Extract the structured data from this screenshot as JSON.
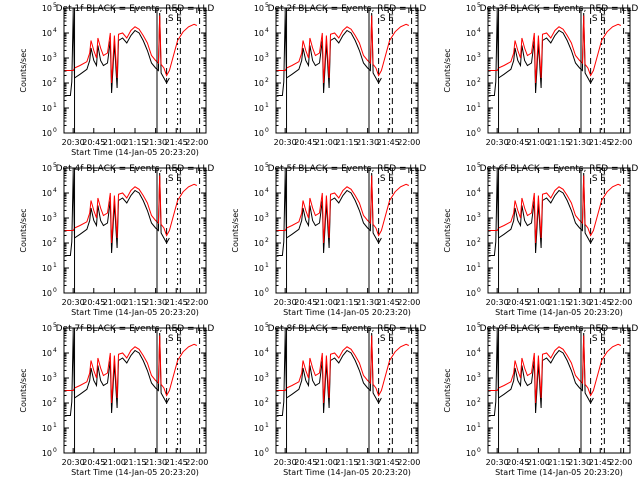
{
  "figure": {
    "background": "#ffffff",
    "colors": {
      "events": "#000000",
      "lld": "#ff0000"
    }
  },
  "chart_data": [
    {
      "type": "line",
      "title": "Det 1f BLACK = Events, RED = LLD",
      "xlabel": "Start Time (14-Jan-05 20:23:20)",
      "ylabel": "Counts/sec",
      "tick_labels": [
        "20:30",
        "20:45",
        "21:00",
        "21:15",
        "21:30",
        "21:45",
        "22:00"
      ],
      "y_tick_exponents": [
        "0",
        "1",
        "2",
        "3",
        "4",
        "5"
      ],
      "y_scale": "log",
      "ylim": [
        1,
        100000
      ],
      "xlim": [
        "20:23:20",
        "22:06:40"
      ],
      "annotations": [
        "S",
        "E"
      ],
      "series": [
        {
          "name": "Events",
          "color": "#000000"
        },
        {
          "name": "LLD",
          "color": "#ff0000"
        }
      ]
    },
    {
      "type": "line",
      "title": "Det 2f BLACK = Events, RED = LLD",
      "xlabel": "",
      "ylabel": "",
      "tick_labels": [
        "20:30",
        "20:45",
        "21:00",
        "21:15",
        "21:30",
        "21:45",
        "22:00"
      ],
      "y_tick_exponents": [
        "0",
        "1",
        "2",
        "3",
        "4",
        "5"
      ],
      "y_scale": "log",
      "ylim": [
        1,
        100000
      ],
      "xlim": [
        "20:23:20",
        "22:06:40"
      ],
      "annotations": [
        "S",
        "E"
      ],
      "series": [
        {
          "name": "Events",
          "color": "#000000"
        },
        {
          "name": "LLD",
          "color": "#ff0000"
        }
      ]
    },
    {
      "type": "line",
      "title": "Det 3f BLACK = Events, RED = LLD",
      "xlabel": "",
      "ylabel": "Counts/sec",
      "tick_labels": [
        "20:30",
        "20:45",
        "21:00",
        "21:15",
        "21:30",
        "21:45",
        "22:00"
      ],
      "y_tick_exponents": [
        "0",
        "1",
        "2",
        "3",
        "4",
        "5"
      ],
      "y_scale": "log",
      "ylim": [
        1,
        100000
      ],
      "xlim": [
        "20:23:20",
        "22:06:40"
      ],
      "annotations": [
        "S",
        "E"
      ],
      "series": [
        {
          "name": "Events",
          "color": "#000000"
        },
        {
          "name": "LLD",
          "color": "#ff0000"
        }
      ]
    },
    {
      "type": "line",
      "title": "Det 4f BLACK = Events, RED = LLD",
      "xlabel": "Start Time (14-Jan-05 20:23:20)",
      "ylabel": "Counts/sec",
      "tick_labels": [
        "20:30",
        "20:45",
        "21:00",
        "21:15",
        "21:30",
        "21:45",
        "22:00"
      ],
      "y_tick_exponents": [
        "0",
        "1",
        "2",
        "3",
        "4",
        "5"
      ],
      "y_scale": "log",
      "ylim": [
        1,
        100000
      ],
      "xlim": [
        "20:23:20",
        "22:06:40"
      ],
      "annotations": [
        "S",
        "E"
      ],
      "series": [
        {
          "name": "Events",
          "color": "#000000"
        },
        {
          "name": "LLD",
          "color": "#ff0000"
        }
      ]
    },
    {
      "type": "line",
      "title": "Det 5f BLACK = Events, RED = LLD",
      "xlabel": "Start Time (14-Jan-05 20:23:20)",
      "ylabel": "Counts/sec",
      "tick_labels": [
        "20:30",
        "20:45",
        "21:00",
        "21:15",
        "21:30",
        "21:45",
        "22:00"
      ],
      "y_tick_exponents": [
        "0",
        "1",
        "2",
        "3",
        "4",
        "5"
      ],
      "y_scale": "log",
      "ylim": [
        1,
        100000
      ],
      "xlim": [
        "20:23:20",
        "22:06:40"
      ],
      "annotations": [
        "S",
        "E"
      ],
      "series": [
        {
          "name": "Events",
          "color": "#000000"
        },
        {
          "name": "LLD",
          "color": "#ff0000"
        }
      ]
    },
    {
      "type": "line",
      "title": "Det 6f BLACK = Events, RED = LLD",
      "xlabel": "Start Time (14-Jan-05 20:23:20)",
      "ylabel": "Counts/sec",
      "tick_labels": [
        "20:30",
        "20:45",
        "21:00",
        "21:15",
        "21:30",
        "21:45",
        "22:00"
      ],
      "y_tick_exponents": [
        "0",
        "1",
        "2",
        "3",
        "4",
        "5"
      ],
      "y_scale": "log",
      "ylim": [
        1,
        100000
      ],
      "xlim": [
        "20:23:20",
        "22:06:40"
      ],
      "annotations": [
        "S",
        "E"
      ],
      "series": [
        {
          "name": "Events",
          "color": "#000000"
        },
        {
          "name": "LLD",
          "color": "#ff0000"
        }
      ]
    },
    {
      "type": "line",
      "title": "Det 7f BLACK = Events, RED = LLD",
      "xlabel": "Start Time (14-Jan-05 20:23:20)",
      "ylabel": "Counts/sec",
      "tick_labels": [
        "20:30",
        "20:45",
        "21:00",
        "21:15",
        "21:30",
        "21:45",
        "22:00"
      ],
      "y_tick_exponents": [
        "0",
        "1",
        "2",
        "3",
        "4",
        "5"
      ],
      "y_scale": "log",
      "ylim": [
        1,
        100000
      ],
      "xlim": [
        "20:23:20",
        "22:06:40"
      ],
      "annotations": [
        "S",
        "E"
      ],
      "series": [
        {
          "name": "Events",
          "color": "#000000"
        },
        {
          "name": "LLD",
          "color": "#ff0000"
        }
      ]
    },
    {
      "type": "line",
      "title": "Det 8f BLACK = Events, RED = LLD",
      "xlabel": "Start Time (14-Jan-05 20:23:20)",
      "ylabel": "",
      "tick_labels": [
        "20:30",
        "20:45",
        "21:00",
        "21:15",
        "21:30",
        "21:45",
        "22:00"
      ],
      "y_tick_exponents": [
        "0",
        "1",
        "2",
        "3",
        "4",
        "5"
      ],
      "y_scale": "log",
      "ylim": [
        1,
        100000
      ],
      "xlim": [
        "20:23:20",
        "22:06:40"
      ],
      "annotations": [
        "S",
        "E"
      ],
      "series": [
        {
          "name": "Events",
          "color": "#000000"
        },
        {
          "name": "LLD",
          "color": "#ff0000"
        }
      ]
    },
    {
      "type": "line",
      "title": "Det 9f BLACK = Events, RED = LLD",
      "xlabel": "Start Time (14-Jan-05 20:23:20)",
      "ylabel": "Counts/sec",
      "tick_labels": [
        "20:30",
        "20:45",
        "21:00",
        "21:15",
        "21:30",
        "21:45",
        "22:00"
      ],
      "y_tick_exponents": [
        "0",
        "1",
        "2",
        "3",
        "4",
        "5"
      ],
      "y_scale": "log",
      "ylim": [
        1,
        100000
      ],
      "xlim": [
        "20:23:20",
        "22:06:40"
      ],
      "annotations": [
        "S",
        "E"
      ],
      "series": [
        {
          "name": "Events",
          "color": "#000000"
        },
        {
          "name": "LLD",
          "color": "#ff0000"
        }
      ]
    }
  ]
}
